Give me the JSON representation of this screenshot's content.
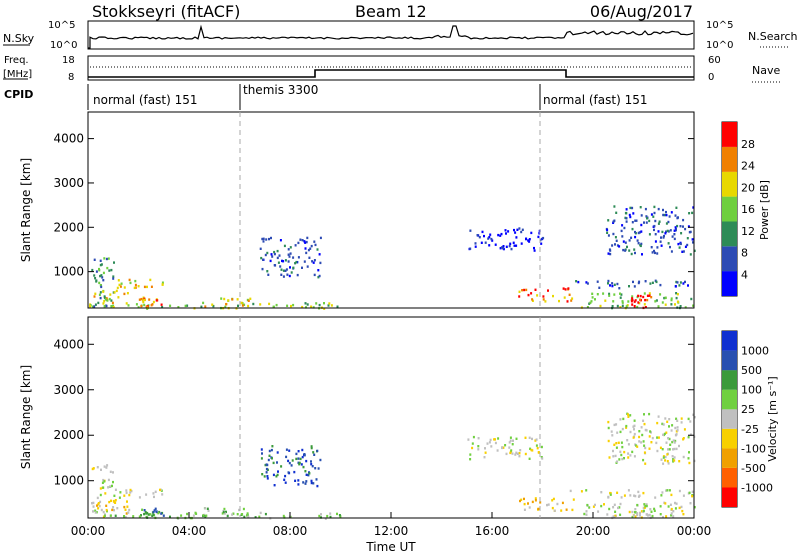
{
  "header": {
    "radar": "Stokkseyri (fitACF)",
    "beam": "Beam 12",
    "date": "06/Aug/2017"
  },
  "noise_panel": {
    "left_label": "N.Sky",
    "right_label": "N.Search",
    "left_ticks": [
      "10^5",
      "10^0"
    ],
    "right_ticks": [
      "10^5",
      "10^0"
    ]
  },
  "freq_panel": {
    "left_label_line1": "Freq.",
    "left_label_line2": "[MHz]",
    "right_label": "Nave",
    "left_ticks": [
      "18",
      "8"
    ],
    "right_ticks": [
      "60",
      "0"
    ]
  },
  "cpid_panel": {
    "label": "CPID",
    "segments": [
      {
        "start_hour": 0,
        "text": "normal (fast) 151"
      },
      {
        "start_hour": 6,
        "text": "themis 3300"
      },
      {
        "start_hour": 18,
        "text": "normal (fast) 151"
      }
    ]
  },
  "chart_data": [
    {
      "type": "heatmap",
      "name": "power",
      "ylabel": "Slant Range [km]",
      "yticks": [
        1000,
        2000,
        3000,
        4000
      ],
      "ylim": [
        180,
        4600
      ],
      "xlim": [
        0,
        24
      ],
      "colorbar_label": "Power [dB]",
      "colorbar_ticks": [
        "28",
        "24",
        "20",
        "16",
        "12",
        "8",
        "4"
      ],
      "colors": [
        "#0000ff",
        "#2d4bb4",
        "#2e8b57",
        "#6fcf3f",
        "#e8d800",
        "#f08000",
        "#ff0000"
      ],
      "regions": [
        {
          "t0": 0.1,
          "t1": 1.0,
          "r0": 180,
          "r1": 1400,
          "level": 2
        },
        {
          "t0": 0.2,
          "t1": 1.6,
          "r0": 300,
          "r1": 600,
          "level": 4
        },
        {
          "t0": 1.0,
          "t1": 3.0,
          "r0": 650,
          "r1": 850,
          "level": 4
        },
        {
          "t0": 0.0,
          "t1": 10.0,
          "r0": 190,
          "r1": 320,
          "level": 3
        },
        {
          "t0": 2.0,
          "t1": 3.0,
          "r0": 200,
          "r1": 450,
          "level": 5
        },
        {
          "t0": 4.5,
          "t1": 6.5,
          "r0": 200,
          "r1": 450,
          "level": 4
        },
        {
          "t0": 6.8,
          "t1": 9.2,
          "r0": 900,
          "r1": 1800,
          "level": 1
        },
        {
          "t0": 17.0,
          "t1": 19.2,
          "r0": 350,
          "r1": 650,
          "level": 5
        },
        {
          "t0": 19.0,
          "t1": 24.0,
          "r0": 650,
          "r1": 820,
          "level": 1
        },
        {
          "t0": 19.5,
          "t1": 24.0,
          "r0": 200,
          "r1": 550,
          "level": 3
        },
        {
          "t0": 21.5,
          "t1": 22.3,
          "r0": 200,
          "r1": 500,
          "level": 6
        },
        {
          "t0": 15.0,
          "t1": 18.0,
          "r0": 1500,
          "r1": 2000,
          "level": 0
        },
        {
          "t0": 20.5,
          "t1": 24.0,
          "r0": 1400,
          "r1": 2500,
          "level": 1
        }
      ]
    },
    {
      "type": "heatmap",
      "name": "velocity",
      "xlabel": "Time UT",
      "ylabel": "Slant Range [km]",
      "xticks": [
        "00:00",
        "04:00",
        "08:00",
        "12:00",
        "16:00",
        "20:00",
        "00:00"
      ],
      "yticks": [
        1000,
        2000,
        3000,
        4000
      ],
      "ylim": [
        180,
        4600
      ],
      "xlim": [
        0,
        24
      ],
      "colorbar_label": "Velocity [m s⁻¹]",
      "colorbar_ticks": [
        "1000",
        "500",
        "100",
        "25",
        "-25",
        "-100",
        "-500",
        "-1000"
      ],
      "colors": [
        "#ff0000",
        "#ff6000",
        "#f0a000",
        "#f8d000",
        "#c0c0c0",
        "#70d040",
        "#3b9a3b",
        "#2850b0",
        "#1030d0"
      ],
      "regions": [
        {
          "t0": 0.1,
          "t1": 1.0,
          "r0": 180,
          "r1": 1400,
          "level": 4
        },
        {
          "t0": 0.2,
          "t1": 1.6,
          "r0": 300,
          "r1": 600,
          "level": 3
        },
        {
          "t0": 1.0,
          "t1": 3.0,
          "r0": 650,
          "r1": 850,
          "level": 4
        },
        {
          "t0": 0.0,
          "t1": 10.0,
          "r0": 190,
          "r1": 320,
          "level": 5
        },
        {
          "t0": 2.0,
          "t1": 3.0,
          "r0": 200,
          "r1": 450,
          "level": 6
        },
        {
          "t0": 4.5,
          "t1": 6.5,
          "r0": 200,
          "r1": 450,
          "level": 5
        },
        {
          "t0": 6.8,
          "t1": 9.2,
          "r0": 900,
          "r1": 1800,
          "level": 7
        },
        {
          "t0": 17.0,
          "t1": 19.2,
          "r0": 350,
          "r1": 650,
          "level": 3
        },
        {
          "t0": 19.0,
          "t1": 24.0,
          "r0": 650,
          "r1": 820,
          "level": 4
        },
        {
          "t0": 19.5,
          "t1": 24.0,
          "r0": 200,
          "r1": 550,
          "level": 4
        },
        {
          "t0": 21.5,
          "t1": 22.3,
          "r0": 200,
          "r1": 500,
          "level": 4
        },
        {
          "t0": 15.0,
          "t1": 18.0,
          "r0": 1500,
          "r1": 2000,
          "level": 4
        },
        {
          "t0": 20.5,
          "t1": 24.0,
          "r0": 1400,
          "r1": 2500,
          "level": 4
        }
      ]
    }
  ]
}
